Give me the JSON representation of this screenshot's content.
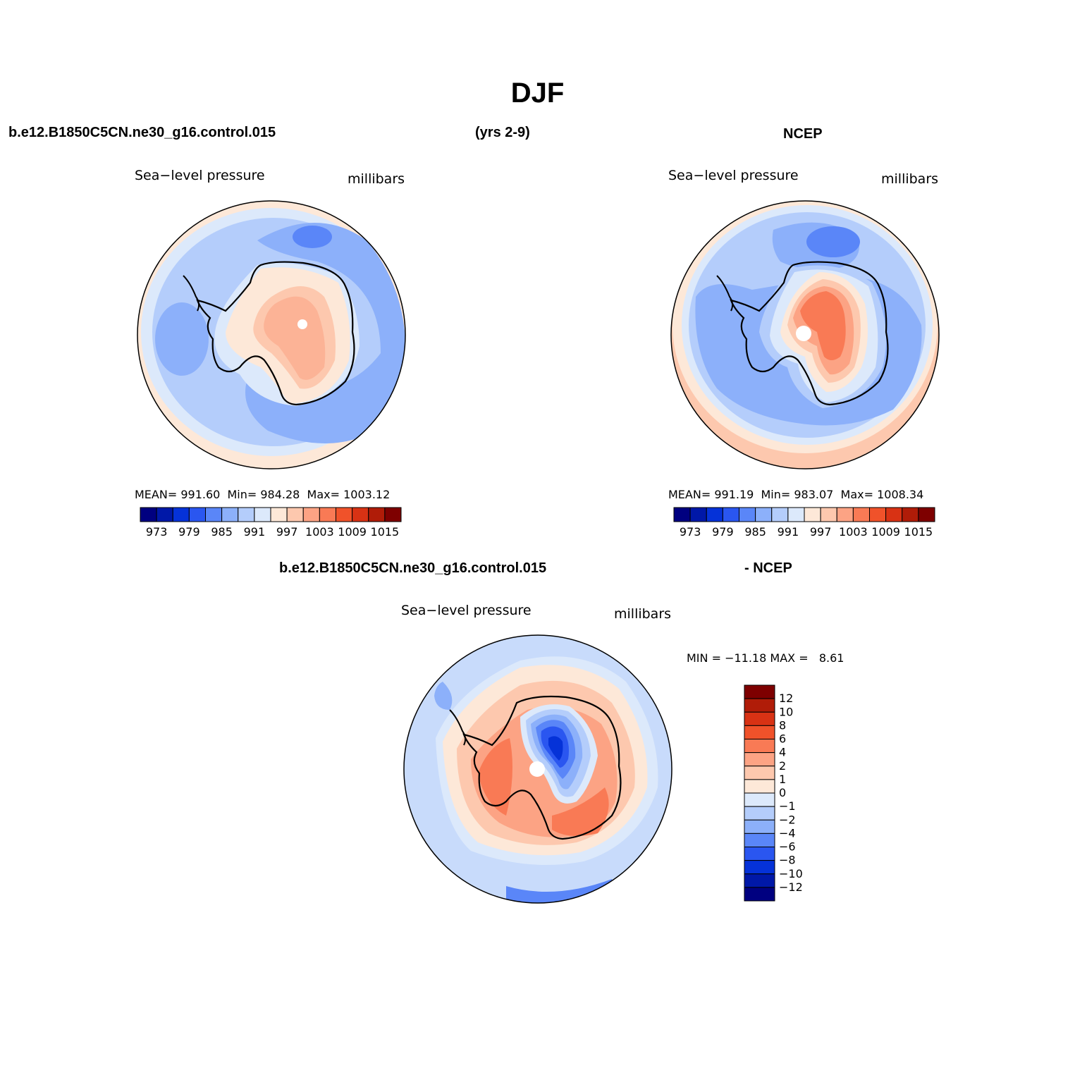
{
  "title": "DJF",
  "top_left": {
    "case_label": "b.e12.B1850C5CN.ne30_g16.control.015",
    "years": "(yrs 2-9)",
    "field_label": "Sea−level pressure",
    "units": "millibars",
    "stats": {
      "mean_label": "MEAN=",
      "mean": "991.60",
      "min_label": "Min=",
      "min": "984.28",
      "max_label": "Max=",
      "max": "1003.12"
    }
  },
  "top_right": {
    "case_label": "NCEP",
    "field_label": "Sea−level pressure",
    "units": "millibars",
    "stats": {
      "mean_label": "MEAN=",
      "mean": "991.19",
      "min_label": "Min=",
      "min": "983.07",
      "max_label": "Max=",
      "max": "1008.34"
    }
  },
  "bottom": {
    "case_label": "b.e12.B1850C5CN.ne30_g16.control.015",
    "minus_label": "- NCEP",
    "field_label": "Sea−level pressure",
    "units": "millibars",
    "minmax": {
      "min_label": "MIN =",
      "min": "−11.18",
      "max_label": "MAX =",
      "max": "8.61"
    }
  },
  "slp_colorbar": {
    "colors": [
      "#000080",
      "#0018a8",
      "#0532d8",
      "#2a56f0",
      "#5a86f8",
      "#8cb0fa",
      "#b4cdfb",
      "#dce9fb",
      "#fde8d8",
      "#fdc8ae",
      "#fca384",
      "#f97a55",
      "#f0522a",
      "#d83214",
      "#b01c08",
      "#7e0000"
    ],
    "tick_labels": [
      "973",
      "979",
      "985",
      "991",
      "997",
      "1003",
      "1009",
      "1015"
    ]
  },
  "diff_colorbar": {
    "colors": [
      "#000080",
      "#0018a8",
      "#0532d8",
      "#2a56f0",
      "#5a86f8",
      "#8cb0fa",
      "#b4cdfb",
      "#dce9fb",
      "#fde8d8",
      "#fdc8ae",
      "#fca384",
      "#f97a55",
      "#f0522a",
      "#d83214",
      "#b01c08",
      "#7e0000"
    ],
    "tick_labels": [
      "12",
      "10",
      "8",
      "6",
      "4",
      "2",
      "1",
      "0",
      "−1",
      "−2",
      "−4",
      "−6",
      "−8",
      "−10",
      "−12"
    ]
  }
}
